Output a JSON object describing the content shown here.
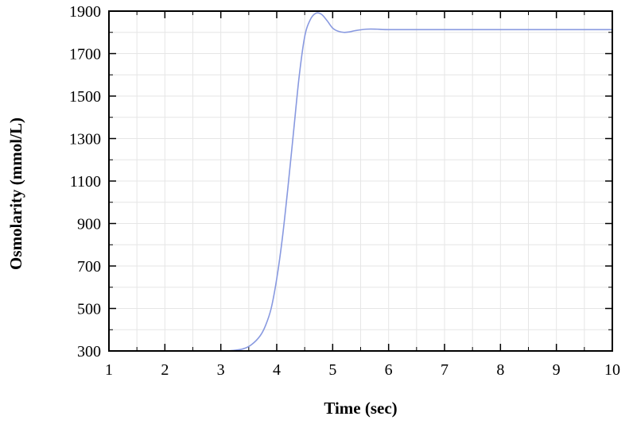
{
  "chart_data": {
    "type": "line",
    "title": "",
    "xlabel": "Time (sec)",
    "ylabel": "Osmolarity (mmol/L)",
    "xlim": [
      1,
      10
    ],
    "ylim": [
      300,
      1900
    ],
    "xticks": [
      "1",
      "2",
      "3",
      "4",
      "5",
      "6",
      "7",
      "8",
      "9",
      "10"
    ],
    "yticks": [
      "300",
      "500",
      "700",
      "900",
      "1100",
      "1300",
      "1500",
      "1700",
      "1900"
    ],
    "grid": true,
    "legend": "none",
    "colors": {
      "line": "#8899e0",
      "grid": "#e6e6e6",
      "axis": "#000000"
    },
    "series": [
      {
        "x": [
          1,
          2,
          3,
          3.2,
          3.4,
          3.55,
          3.7,
          3.8,
          3.9,
          4.0,
          4.1,
          4.2,
          4.3,
          4.4,
          4.5,
          4.6,
          4.7,
          4.8,
          4.9,
          5.0,
          5.1,
          5.2,
          5.3,
          5.4,
          5.6,
          5.8,
          6.0,
          7.0,
          8.0,
          9.0,
          10.0
        ],
        "y": [
          300,
          300,
          300,
          302,
          310,
          330,
          370,
          420,
          500,
          640,
          830,
          1070,
          1330,
          1590,
          1780,
          1860,
          1890,
          1885,
          1855,
          1820,
          1805,
          1800,
          1802,
          1808,
          1815,
          1815,
          1813,
          1813,
          1813,
          1813,
          1813
        ]
      }
    ]
  }
}
